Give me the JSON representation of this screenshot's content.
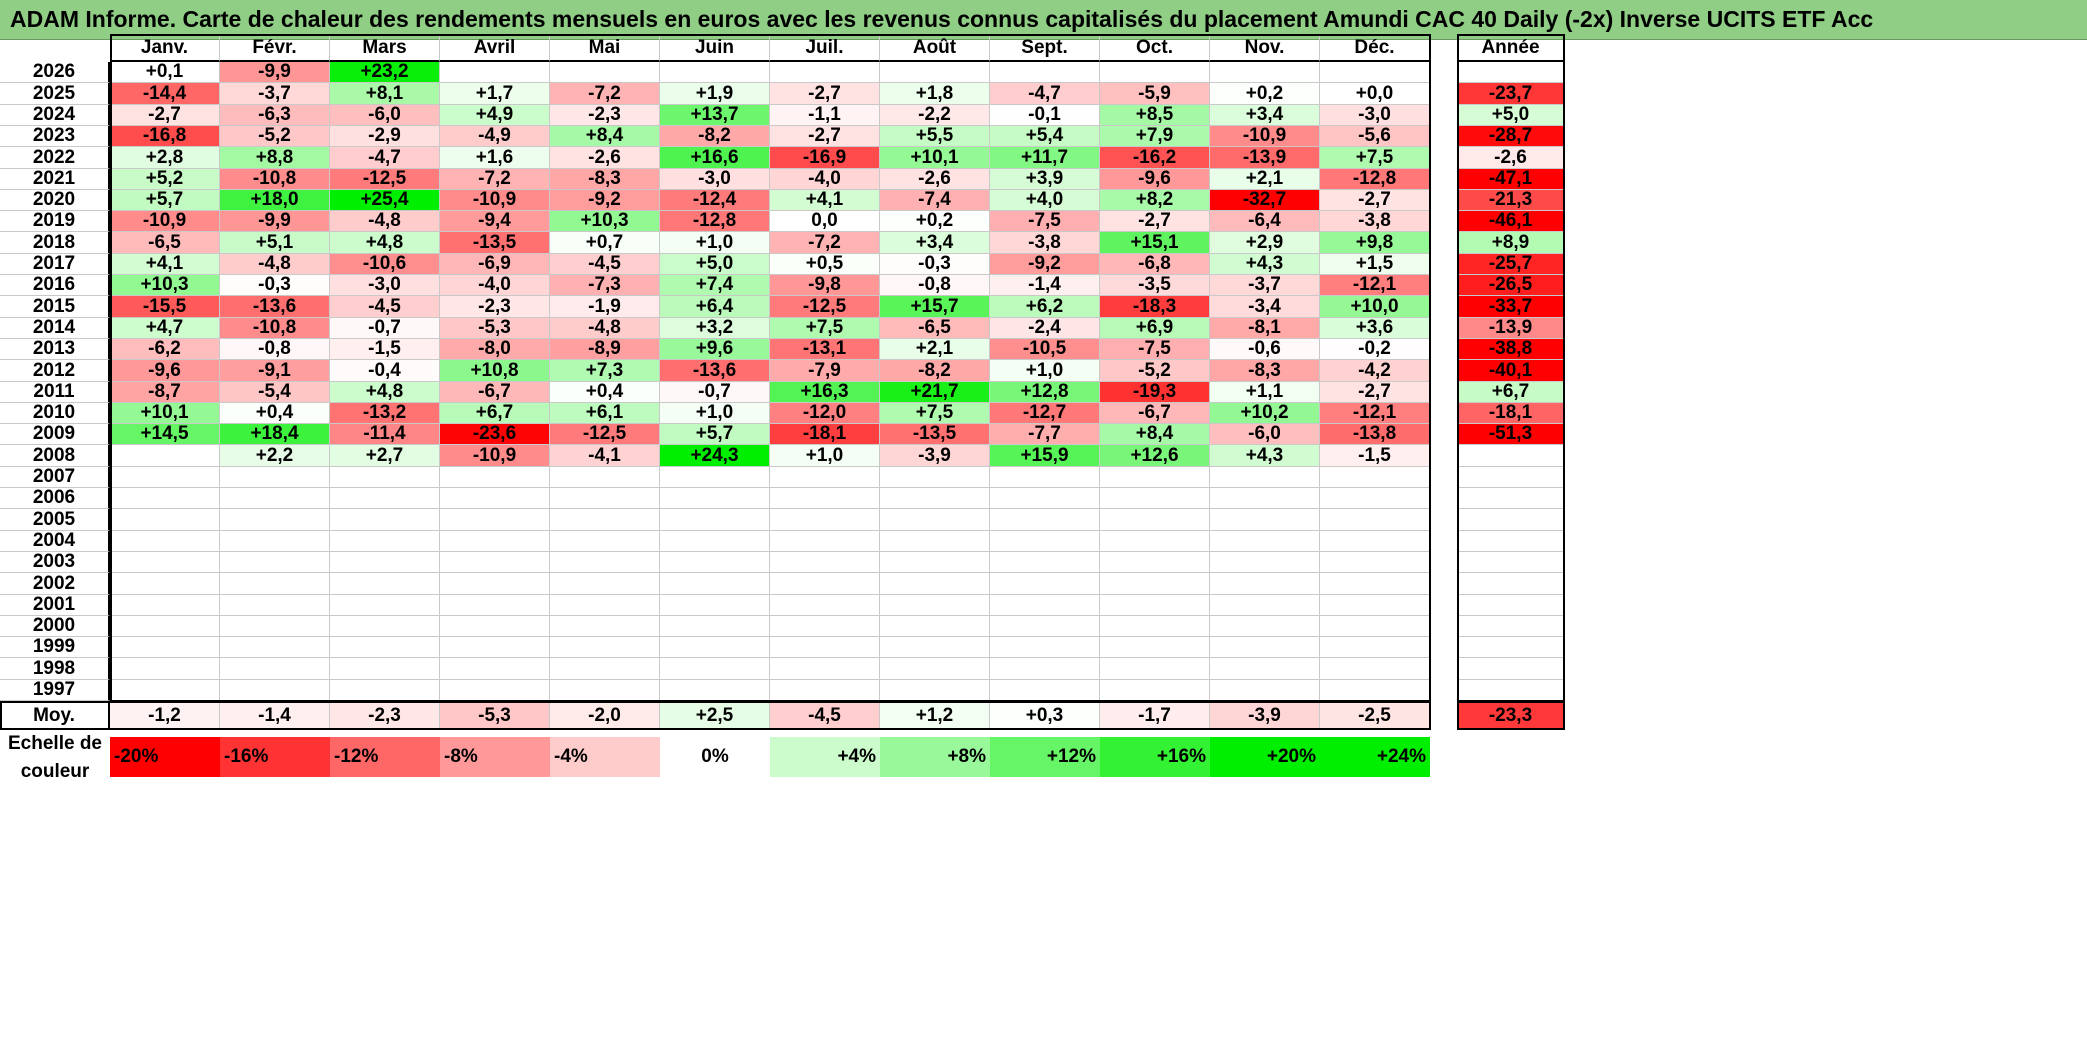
{
  "title": "ADAM Informe. Carte de chaleur des rendements mensuels en euros avec les revenus connus capitalisés du placement Amundi CAC 40 Daily (-2x) Inverse UCITS ETF Acc",
  "chart_data": {
    "type": "heatmap",
    "columns": [
      "Janv.",
      "Févr.",
      "Mars",
      "Avril",
      "Mai",
      "Juin",
      "Juil.",
      "Août",
      "Sept.",
      "Oct.",
      "Nov.",
      "Déc."
    ],
    "year_column_label": "Année",
    "rows": [
      {
        "year": "2026",
        "months": [
          "+0,1",
          "-9,9",
          "+23,2",
          "",
          "",
          "",
          "",
          "",
          "",
          "",
          "",
          ""
        ],
        "annual": ""
      },
      {
        "year": "2025",
        "months": [
          "-14,4",
          "-3,7",
          "+8,1",
          "+1,7",
          "-7,2",
          "+1,9",
          "-2,7",
          "+1,8",
          "-4,7",
          "-5,9",
          "+0,2",
          "+0,0"
        ],
        "annual": "-23,7"
      },
      {
        "year": "2024",
        "months": [
          "-2,7",
          "-6,3",
          "-6,0",
          "+4,9",
          "-2,3",
          "+13,7",
          "-1,1",
          "-2,2",
          "-0,1",
          "+8,5",
          "+3,4",
          "-3,0"
        ],
        "annual": "+5,0"
      },
      {
        "year": "2023",
        "months": [
          "-16,8",
          "-5,2",
          "-2,9",
          "-4,9",
          "+8,4",
          "-8,2",
          "-2,7",
          "+5,5",
          "+5,4",
          "+7,9",
          "-10,9",
          "-5,6"
        ],
        "annual": "-28,7"
      },
      {
        "year": "2022",
        "months": [
          "+2,8",
          "+8,8",
          "-4,7",
          "+1,6",
          "-2,6",
          "+16,6",
          "-16,9",
          "+10,1",
          "+11,7",
          "-16,2",
          "-13,9",
          "+7,5"
        ],
        "annual": "-2,6"
      },
      {
        "year": "2021",
        "months": [
          "+5,2",
          "-10,8",
          "-12,5",
          "-7,2",
          "-8,3",
          "-3,0",
          "-4,0",
          "-2,6",
          "+3,9",
          "-9,6",
          "+2,1",
          "-12,8"
        ],
        "annual": "-47,1"
      },
      {
        "year": "2020",
        "months": [
          "+5,7",
          "+18,0",
          "+25,4",
          "-10,9",
          "-9,2",
          "-12,4",
          "+4,1",
          "-7,4",
          "+4,0",
          "+8,2",
          "-32,7",
          "-2,7"
        ],
        "annual": "-21,3"
      },
      {
        "year": "2019",
        "months": [
          "-10,9",
          "-9,9",
          "-4,8",
          "-9,4",
          "+10,3",
          "-12,8",
          "0,0",
          "+0,2",
          "-7,5",
          "-2,7",
          "-6,4",
          "-3,8"
        ],
        "annual": "-46,1"
      },
      {
        "year": "2018",
        "months": [
          "-6,5",
          "+5,1",
          "+4,8",
          "-13,5",
          "+0,7",
          "+1,0",
          "-7,2",
          "+3,4",
          "-3,8",
          "+15,1",
          "+2,9",
          "+9,8"
        ],
        "annual": "+8,9"
      },
      {
        "year": "2017",
        "months": [
          "+4,1",
          "-4,8",
          "-10,6",
          "-6,9",
          "-4,5",
          "+5,0",
          "+0,5",
          "-0,3",
          "-9,2",
          "-6,8",
          "+4,3",
          "+1,5"
        ],
        "annual": "-25,7"
      },
      {
        "year": "2016",
        "months": [
          "+10,3",
          "-0,3",
          "-3,0",
          "-4,0",
          "-7,3",
          "+7,4",
          "-9,8",
          "-0,8",
          "-1,4",
          "-3,5",
          "-3,7",
          "-12,1"
        ],
        "annual": "-26,5"
      },
      {
        "year": "2015",
        "months": [
          "-15,5",
          "-13,6",
          "-4,5",
          "-2,3",
          "-1,9",
          "+6,4",
          "-12,5",
          "+15,7",
          "+6,2",
          "-18,3",
          "-3,4",
          "+10,0"
        ],
        "annual": "-33,7"
      },
      {
        "year": "2014",
        "months": [
          "+4,7",
          "-10,8",
          "-0,7",
          "-5,3",
          "-4,8",
          "+3,2",
          "+7,5",
          "-6,5",
          "-2,4",
          "+6,9",
          "-8,1",
          "+3,6"
        ],
        "annual": "-13,9"
      },
      {
        "year": "2013",
        "months": [
          "-6,2",
          "-0,8",
          "-1,5",
          "-8,0",
          "-8,9",
          "+9,6",
          "-13,1",
          "+2,1",
          "-10,5",
          "-7,5",
          "-0,6",
          "-0,2"
        ],
        "annual": "-38,8"
      },
      {
        "year": "2012",
        "months": [
          "-9,6",
          "-9,1",
          "-0,4",
          "+10,8",
          "+7,3",
          "-13,6",
          "-7,9",
          "-8,2",
          "+1,0",
          "-5,2",
          "-8,3",
          "-4,2"
        ],
        "annual": "-40,1"
      },
      {
        "year": "2011",
        "months": [
          "-8,7",
          "-5,4",
          "+4,8",
          "-6,7",
          "+0,4",
          "-0,7",
          "+16,3",
          "+21,7",
          "+12,8",
          "-19,3",
          "+1,1",
          "-2,7"
        ],
        "annual": "+6,7"
      },
      {
        "year": "2010",
        "months": [
          "+10,1",
          "+0,4",
          "-13,2",
          "+6,7",
          "+6,1",
          "+1,0",
          "-12,0",
          "+7,5",
          "-12,7",
          "-6,7",
          "+10,2",
          "-12,1"
        ],
        "annual": "-18,1"
      },
      {
        "year": "2009",
        "months": [
          "+14,5",
          "+18,4",
          "-11,4",
          "-23,6",
          "-12,5",
          "+5,7",
          "-18,1",
          "-13,5",
          "-7,7",
          "+8,4",
          "-6,0",
          "-13,8"
        ],
        "annual": "-51,3"
      },
      {
        "year": "2008",
        "months": [
          "",
          "+2,2",
          "+2,7",
          "-10,9",
          "-4,1",
          "+24,3",
          "+1,0",
          "-3,9",
          "+15,9",
          "+12,6",
          "+4,3",
          "-1,5"
        ],
        "annual": ""
      },
      {
        "year": "2007",
        "months": [
          "",
          "",
          "",
          "",
          "",
          "",
          "",
          "",
          "",
          "",
          "",
          ""
        ],
        "annual": ""
      },
      {
        "year": "2006",
        "months": [
          "",
          "",
          "",
          "",
          "",
          "",
          "",
          "",
          "",
          "",
          "",
          ""
        ],
        "annual": ""
      },
      {
        "year": "2005",
        "months": [
          "",
          "",
          "",
          "",
          "",
          "",
          "",
          "",
          "",
          "",
          "",
          ""
        ],
        "annual": ""
      },
      {
        "year": "2004",
        "months": [
          "",
          "",
          "",
          "",
          "",
          "",
          "",
          "",
          "",
          "",
          "",
          ""
        ],
        "annual": ""
      },
      {
        "year": "2003",
        "months": [
          "",
          "",
          "",
          "",
          "",
          "",
          "",
          "",
          "",
          "",
          "",
          ""
        ],
        "annual": ""
      },
      {
        "year": "2002",
        "months": [
          "",
          "",
          "",
          "",
          "",
          "",
          "",
          "",
          "",
          "",
          "",
          ""
        ],
        "annual": ""
      },
      {
        "year": "2001",
        "months": [
          "",
          "",
          "",
          "",
          "",
          "",
          "",
          "",
          "",
          "",
          "",
          ""
        ],
        "annual": ""
      },
      {
        "year": "2000",
        "months": [
          "",
          "",
          "",
          "",
          "",
          "",
          "",
          "",
          "",
          "",
          "",
          ""
        ],
        "annual": ""
      },
      {
        "year": "1999",
        "months": [
          "",
          "",
          "",
          "",
          "",
          "",
          "",
          "",
          "",
          "",
          "",
          ""
        ],
        "annual": ""
      },
      {
        "year": "1998",
        "months": [
          "",
          "",
          "",
          "",
          "",
          "",
          "",
          "",
          "",
          "",
          "",
          ""
        ],
        "annual": ""
      },
      {
        "year": "1997",
        "months": [
          "",
          "",
          "",
          "",
          "",
          "",
          "",
          "",
          "",
          "",
          "",
          ""
        ],
        "annual": ""
      }
    ],
    "average": {
      "label": "Moy.",
      "months": [
        "-1,2",
        "-1,4",
        "-2,3",
        "-5,3",
        "-2,0",
        "+2,5",
        "-4,5",
        "+1,2",
        "+0,3",
        "-1,7",
        "-3,9",
        "-2,5"
      ],
      "annual": "-23,3"
    },
    "legend": {
      "label_line1": "Echelle de",
      "label_line2": "couleur",
      "stops": [
        "-20%",
        "-16%",
        "-12%",
        "-8%",
        "-4%",
        "0%",
        "+4%",
        "+8%",
        "+12%",
        "+16%",
        "+20%",
        "+24%"
      ],
      "stop_values": [
        -20,
        -16,
        -12,
        -8,
        -4,
        0,
        4,
        8,
        12,
        16,
        20,
        24
      ]
    },
    "colors": {
      "negative": "#ff0000",
      "neutral": "#ffffff",
      "positive": "#00ee00",
      "title_background": "#8fce84"
    }
  }
}
